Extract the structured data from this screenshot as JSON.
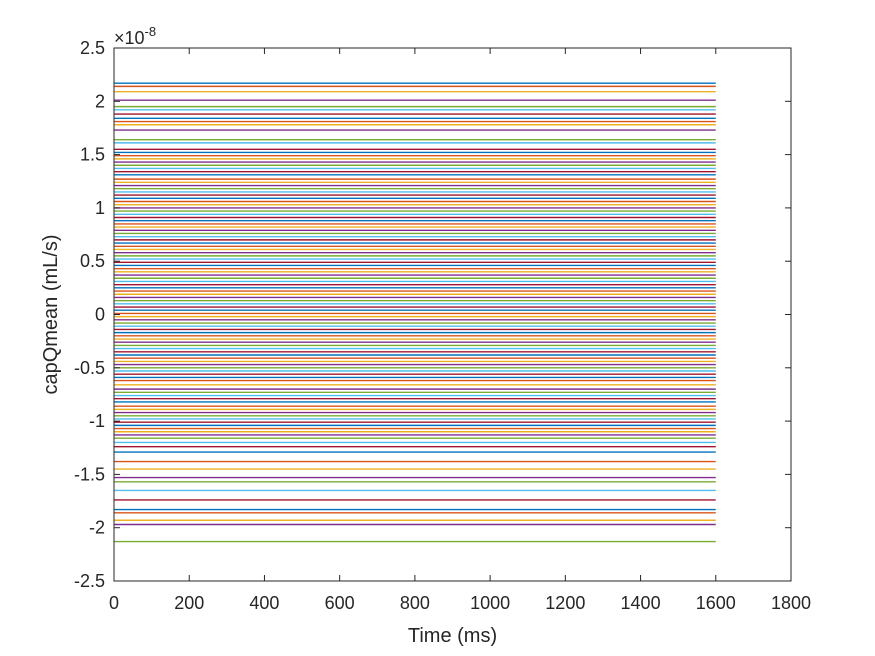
{
  "chart_data": {
    "type": "line",
    "title": "",
    "xlabel": "Time (ms)",
    "ylabel": "capQmean (mL/s)",
    "y_exponent_label": {
      "base": "×10",
      "exponent": "-8"
    },
    "xlim": [
      0,
      1800
    ],
    "ylim": [
      -2.5,
      2.5
    ],
    "y_multiplier": 1e-08,
    "x_ticks": [
      "0",
      "200",
      "400",
      "600",
      "800",
      "1000",
      "1200",
      "1400",
      "1600",
      "1800"
    ],
    "y_ticks": [
      "-2.5",
      "-2",
      "-1.5",
      "-1",
      "-0.5",
      "0",
      "0.5",
      "1",
      "1.5",
      "2",
      "2.5"
    ],
    "x_tick_values": [
      0,
      200,
      400,
      600,
      800,
      1000,
      1200,
      1400,
      1600,
      1800
    ],
    "y_tick_values": [
      -2.5,
      -2,
      -1.5,
      -1,
      -0.5,
      0,
      0.5,
      1,
      1.5,
      2,
      2.5
    ],
    "grid": false,
    "legend": "none",
    "series_x_range": [
      0,
      1600
    ],
    "series_constant_values": [
      2.17,
      2.14,
      2.09,
      2.01,
      1.95,
      1.92,
      1.88,
      1.84,
      1.81,
      1.78,
      1.73,
      1.64,
      1.61,
      1.55,
      1.52,
      1.49,
      1.46,
      1.43,
      1.4,
      1.37,
      1.34,
      1.31,
      1.27,
      1.24,
      1.21,
      1.18,
      1.15,
      1.12,
      1.09,
      1.06,
      1.03,
      1.0,
      0.97,
      0.94,
      0.91,
      0.88,
      0.85,
      0.82,
      0.79,
      0.76,
      0.73,
      0.7,
      0.67,
      0.64,
      0.61,
      0.58,
      0.55,
      0.52,
      0.49,
      0.46,
      0.43,
      0.4,
      0.37,
      0.34,
      0.31,
      0.28,
      0.25,
      0.22,
      0.19,
      0.16,
      0.13,
      0.1,
      0.07,
      0.04,
      0.01,
      -0.02,
      -0.05,
      -0.08,
      -0.11,
      -0.14,
      -0.17,
      -0.2,
      -0.23,
      -0.26,
      -0.29,
      -0.32,
      -0.35,
      -0.38,
      -0.41,
      -0.44,
      -0.47,
      -0.5,
      -0.53,
      -0.56,
      -0.59,
      -0.62,
      -0.66,
      -0.7,
      -0.73,
      -0.76,
      -0.79,
      -0.82,
      -0.86,
      -0.89,
      -0.92,
      -0.95,
      -0.98,
      -1.01,
      -1.04,
      -1.07,
      -1.1,
      -1.13,
      -1.16,
      -1.2,
      -1.24,
      -1.29,
      -1.38,
      -1.45,
      -1.53,
      -1.57,
      -1.65,
      -1.74,
      -1.83,
      -1.86,
      -1.93,
      -1.97,
      -2.13
    ],
    "palette": [
      "#0072BD",
      "#D95319",
      "#EDB120",
      "#7E2F8E",
      "#77AC30",
      "#4DBEEE",
      "#A2142F"
    ]
  }
}
